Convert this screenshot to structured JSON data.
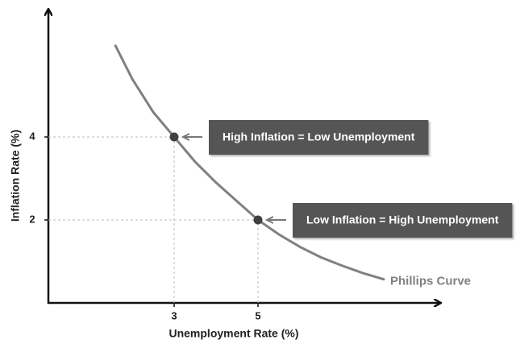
{
  "chart_data": {
    "type": "line",
    "x_label": "Unemployment Rate (%)",
    "y_label": "Inflation Rate (%)",
    "xlim": [
      0,
      9.3
    ],
    "ylim": [
      0,
      7
    ],
    "xticks": [
      3,
      5
    ],
    "yticks": [
      2,
      4
    ],
    "series": [
      {
        "name": "Phillips Curve",
        "color": "#808080",
        "x": [
          1.6,
          2,
          2.5,
          3,
          3.5,
          4,
          4.5,
          5,
          5.5,
          6,
          6.5,
          7,
          7.5,
          8
        ],
        "values": [
          6.2,
          5.4,
          4.6,
          4.0,
          3.4,
          2.9,
          2.45,
          2.0,
          1.65,
          1.35,
          1.1,
          0.9,
          0.72,
          0.57
        ]
      }
    ],
    "points": [
      {
        "x": 3,
        "y": 4,
        "label": "High Inflation = Low Unemployment"
      },
      {
        "x": 5,
        "y": 2,
        "label": "Low Inflation = High Unemployment"
      }
    ],
    "point_color": "#404040",
    "label_box_color": "#555555"
  }
}
